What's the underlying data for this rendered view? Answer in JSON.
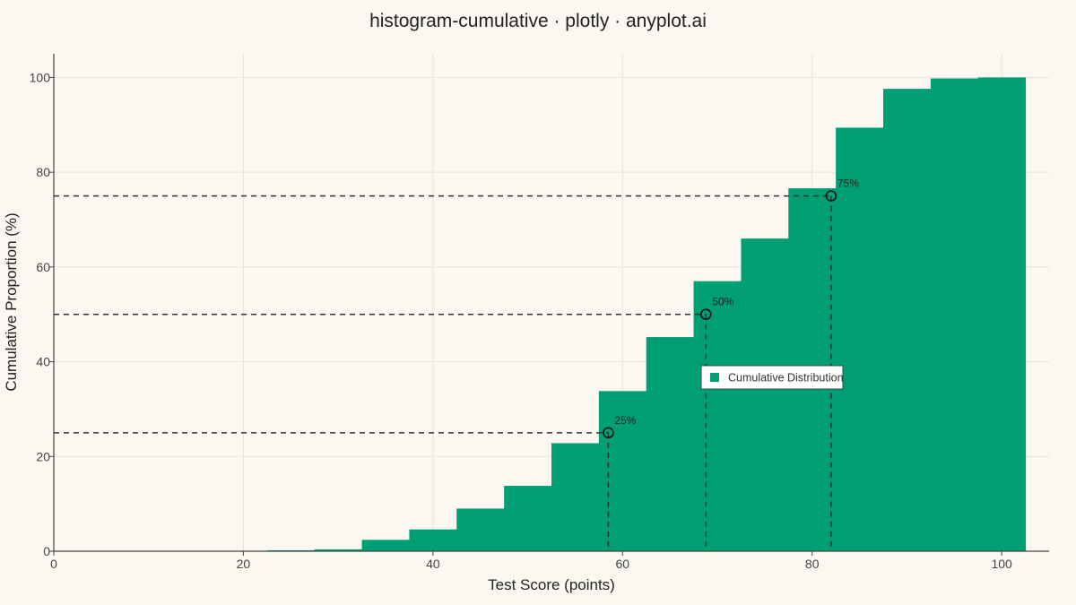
{
  "chart_data": {
    "type": "bar",
    "title": "histogram-cumulative · plotly · anyplot.ai",
    "xlabel": "Test Score (points)",
    "ylabel": "Cumulative Proportion (%)",
    "xlim": [
      0,
      105
    ],
    "ylim": [
      0,
      105
    ],
    "x_ticks": [
      "0",
      "20",
      "40",
      "60",
      "80",
      "100"
    ],
    "y_ticks": [
      "0",
      "20",
      "40",
      "60",
      "80",
      "100"
    ],
    "grid": true,
    "bins": [
      {
        "start": 22.5,
        "end": 27.5,
        "value": 0.2
      },
      {
        "start": 27.5,
        "end": 32.5,
        "value": 0.4
      },
      {
        "start": 32.5,
        "end": 37.5,
        "value": 2.4
      },
      {
        "start": 37.5,
        "end": 42.5,
        "value": 4.6
      },
      {
        "start": 42.5,
        "end": 47.5,
        "value": 9.0
      },
      {
        "start": 47.5,
        "end": 52.5,
        "value": 13.8
      },
      {
        "start": 52.5,
        "end": 57.5,
        "value": 22.8
      },
      {
        "start": 57.5,
        "end": 62.5,
        "value": 33.8
      },
      {
        "start": 62.5,
        "end": 67.5,
        "value": 45.2
      },
      {
        "start": 67.5,
        "end": 72.5,
        "value": 57.0
      },
      {
        "start": 72.5,
        "end": 77.5,
        "value": 66.0
      },
      {
        "start": 77.5,
        "end": 82.5,
        "value": 76.6
      },
      {
        "start": 82.5,
        "end": 87.5,
        "value": 89.4
      },
      {
        "start": 87.5,
        "end": 92.5,
        "value": 97.6
      },
      {
        "start": 92.5,
        "end": 97.5,
        "value": 99.8
      },
      {
        "start": 97.5,
        "end": 102.5,
        "value": 100.0
      }
    ],
    "percentiles": [
      {
        "label": "25%",
        "x": 58.5,
        "y": 25
      },
      {
        "label": "50%",
        "x": 68.8,
        "y": 50
      },
      {
        "label": "75%",
        "x": 82.0,
        "y": 75
      }
    ],
    "legend": {
      "label": "Cumulative Distribution",
      "placement": "center"
    },
    "colors": {
      "bar": "#009E73",
      "background": "#FAF8F1",
      "grid": "#E6E3DA",
      "guide": "#333333"
    }
  }
}
